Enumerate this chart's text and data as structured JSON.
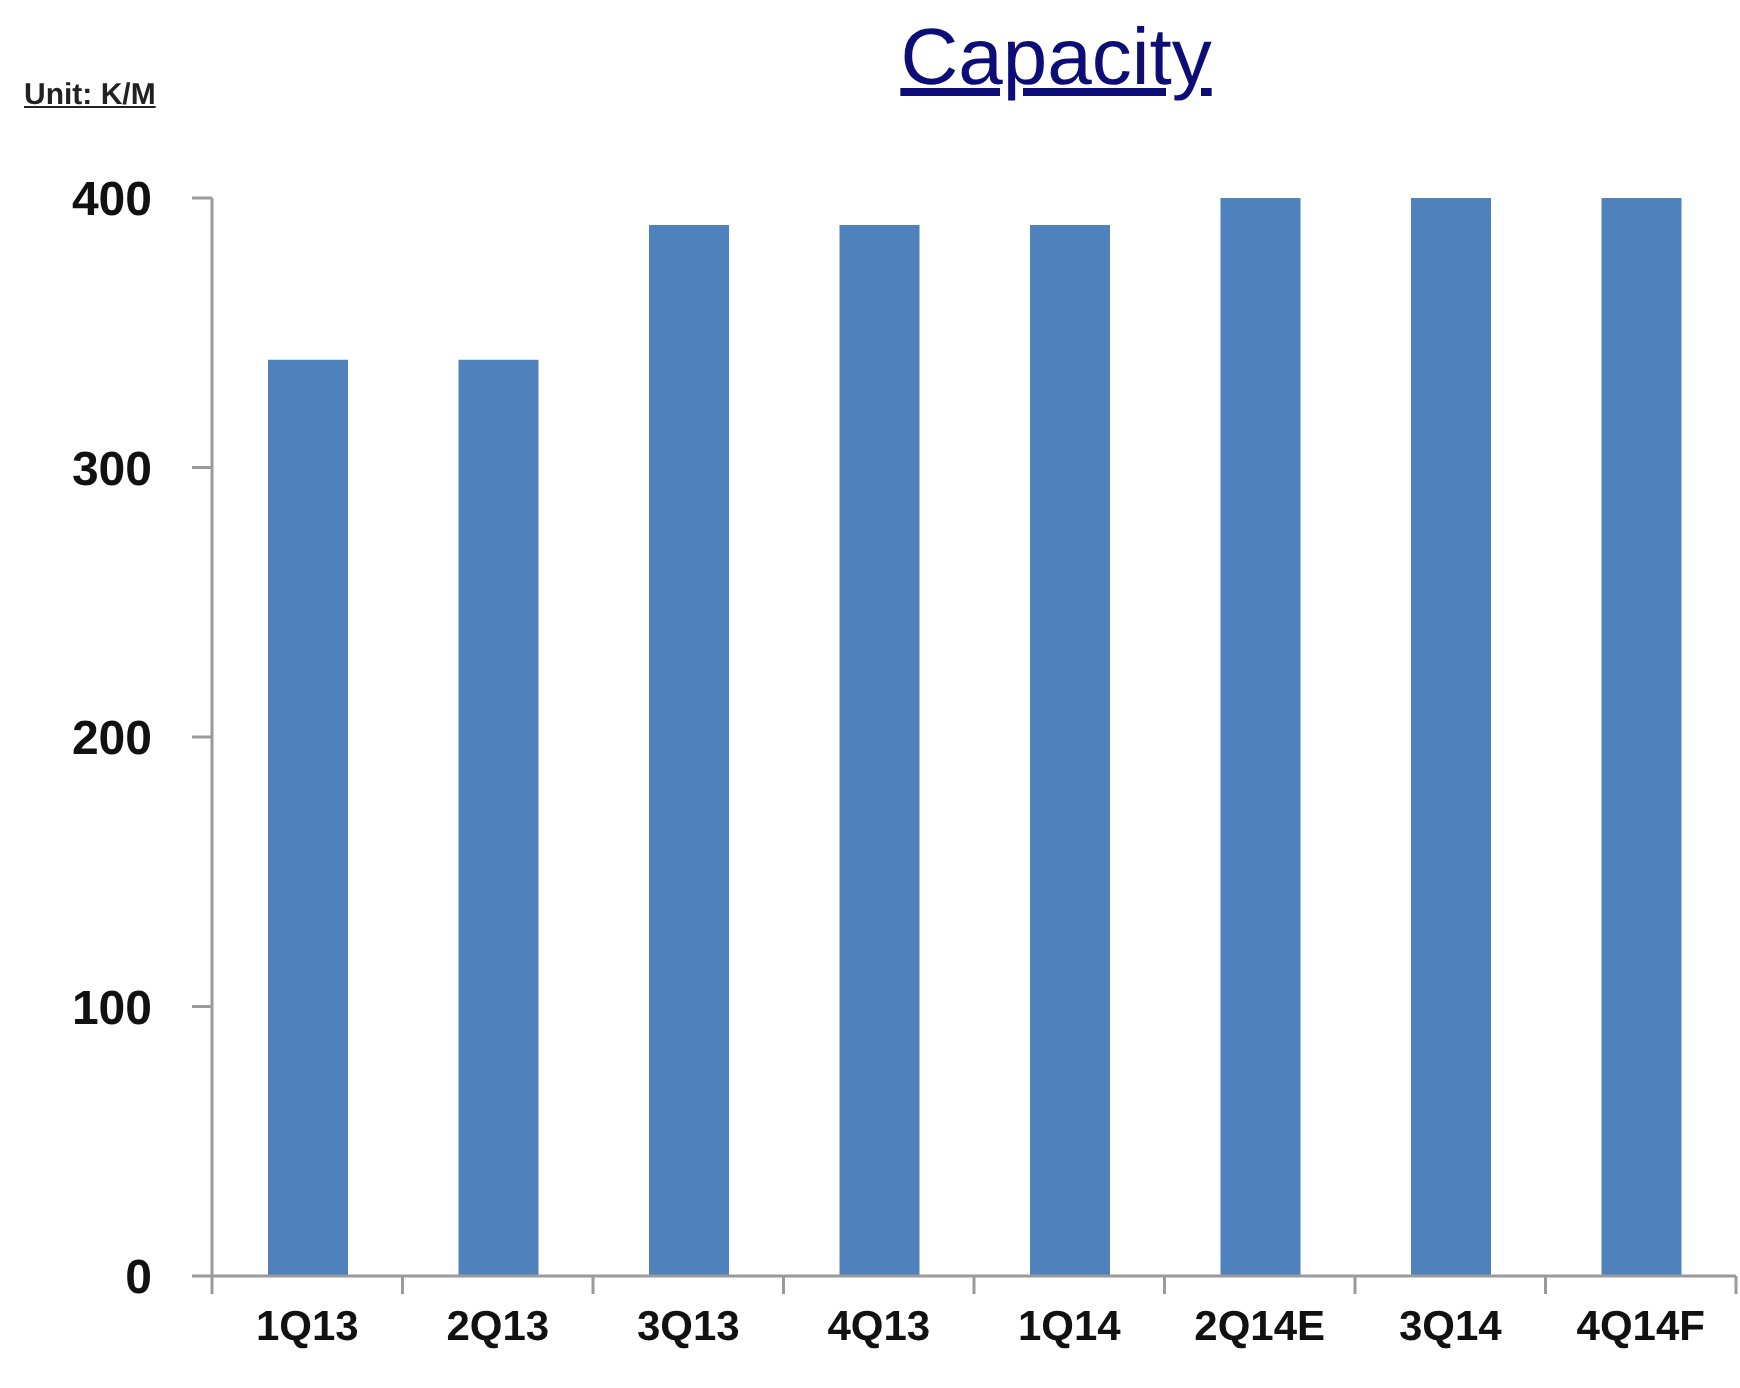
{
  "chart_data": {
    "type": "bar",
    "title": "Capacity",
    "ylabel": "Unit: K/M",
    "categories": [
      "1Q13",
      "2Q13",
      "3Q13",
      "4Q13",
      "1Q14",
      "2Q14E",
      "3Q14",
      "4Q14F"
    ],
    "values": [
      340,
      340,
      390,
      390,
      390,
      400,
      400,
      400
    ],
    "color": "#4f81bd",
    "ylim": [
      0,
      400
    ],
    "yticks": [
      0,
      100,
      200,
      300,
      400
    ],
    "grid": false
  }
}
